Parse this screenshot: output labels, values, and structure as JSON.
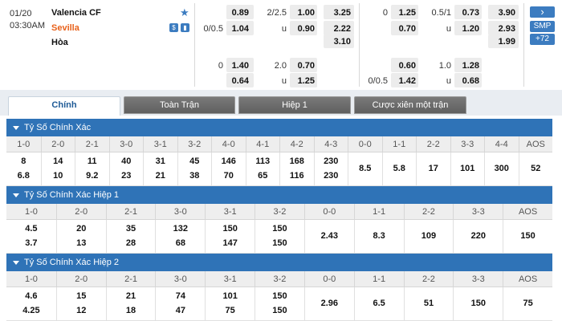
{
  "match": {
    "date": "01/20",
    "time": "03:30AM",
    "home": "Valencia CF",
    "away": "Sevilla",
    "draw": "Hòa",
    "hcap_line_home": "0/0.5",
    "ou_line": "2/2.5",
    "ou_u": "u",
    "odds_row1": {
      "hcap_home": "0.89",
      "ou_over": "1.00",
      "x_home": "3.25",
      "h1_line": "0",
      "h1_home": "1.25",
      "h1_ou_line": "0.5/1",
      "h1_over": "0.73",
      "h1_x_home": "3.90"
    },
    "odds_row2": {
      "hcap_away": "1.04",
      "ou_under": "0.90",
      "x_away": "2.22",
      "h1_away": "0.70",
      "h1_u": "u",
      "h1_under": "1.20",
      "h1_x_away": "2.93"
    },
    "odds_row3": {
      "x_draw": "3.10",
      "h1_x_draw": "1.99"
    },
    "odds_row4": {
      "hcap_line": "0",
      "hcap_home": "1.40",
      "ou_line": "2.0",
      "ou_over": "0.70",
      "h1_home": "0.60",
      "h1_ou_line": "1.0",
      "h1_over": "1.28"
    },
    "odds_row5": {
      "hcap_away": "0.64",
      "ou_u": "u",
      "ou_under": "1.25",
      "h1_line": "0/0.5",
      "h1_away": "1.42",
      "h1_u": "u",
      "h1_under": "0.68"
    },
    "side": {
      "smp": "SMP",
      "more": "+72",
      "arrow": "›"
    },
    "icons": {
      "star": "star-icon",
      "dollar": "dollar-icon",
      "chart": "chart-icon"
    }
  },
  "tabs": [
    "Chính",
    "Toàn Trận",
    "Hiệp 1",
    "Cược xiên một trận"
  ],
  "sections": [
    {
      "title": "Tỷ Số Chính Xác",
      "headers": [
        "1-0",
        "2-0",
        "2-1",
        "3-0",
        "3-1",
        "3-2",
        "4-0",
        "4-1",
        "4-2",
        "4-3",
        "0-0",
        "1-1",
        "2-2",
        "3-3",
        "4-4",
        "AOS"
      ],
      "row1": [
        "8",
        "14",
        "11",
        "40",
        "31",
        "45",
        "146",
        "113",
        "168",
        "230",
        "8.5",
        "5.8",
        "17",
        "101",
        "300",
        "52"
      ],
      "row2": [
        "6.8",
        "10",
        "9.2",
        "23",
        "21",
        "38",
        "70",
        "65",
        "116",
        "230",
        "",
        "",
        "",
        "",
        "",
        ""
      ]
    },
    {
      "title": "Tỷ Số Chính Xác Hiệp 1",
      "headers": [
        "1-0",
        "2-0",
        "2-1",
        "3-0",
        "3-1",
        "3-2",
        "0-0",
        "1-1",
        "2-2",
        "3-3",
        "AOS"
      ],
      "row1": [
        "4.5",
        "20",
        "35",
        "132",
        "150",
        "150",
        "2.43",
        "8.3",
        "109",
        "220",
        "150"
      ],
      "row2": [
        "3.7",
        "13",
        "28",
        "68",
        "147",
        "150",
        "",
        "",
        "",
        "",
        ""
      ]
    },
    {
      "title": "Tỷ Số Chính Xác Hiệp 2",
      "headers": [
        "1-0",
        "2-0",
        "2-1",
        "3-0",
        "3-1",
        "3-2",
        "0-0",
        "1-1",
        "2-2",
        "3-3",
        "AOS"
      ],
      "row1": [
        "4.6",
        "15",
        "21",
        "74",
        "101",
        "150",
        "2.96",
        "6.5",
        "51",
        "150",
        "75"
      ],
      "row2": [
        "4.25",
        "12",
        "18",
        "47",
        "75",
        "150",
        "",
        "",
        "",
        "",
        ""
      ]
    }
  ],
  "colors": {
    "accent": "#2f73b7",
    "away_team": "#e8611a",
    "tab_active_text": "#1e5a96"
  }
}
